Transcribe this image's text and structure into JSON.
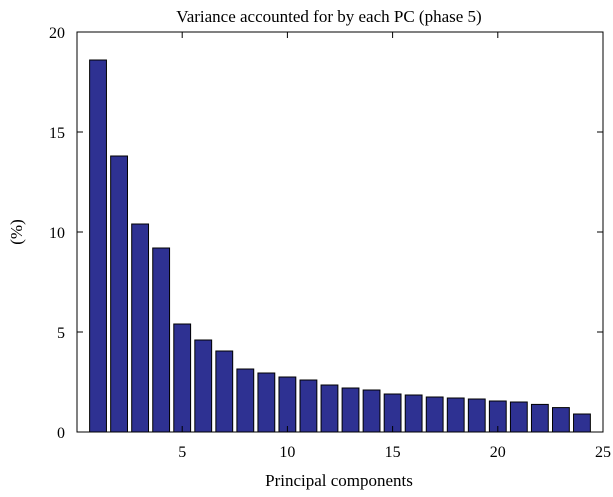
{
  "chart_data": {
    "type": "bar",
    "title": "Variance accounted for by each PC (phase 5)",
    "xlabel": "Principal components",
    "ylabel": "(%)",
    "x": [
      1,
      2,
      3,
      4,
      5,
      6,
      7,
      8,
      9,
      10,
      11,
      12,
      13,
      14,
      15,
      16,
      17,
      18,
      19,
      20,
      21,
      22,
      23,
      24
    ],
    "values": [
      18.6,
      13.8,
      10.4,
      9.2,
      5.4,
      4.6,
      4.05,
      3.15,
      2.95,
      2.75,
      2.6,
      2.35,
      2.2,
      2.1,
      1.9,
      1.85,
      1.75,
      1.7,
      1.65,
      1.55,
      1.5,
      1.38,
      1.22,
      0.9
    ],
    "xlim": [
      0,
      25
    ],
    "ylim": [
      0,
      20
    ],
    "xticks": [
      5,
      10,
      15,
      20,
      25
    ],
    "yticks": [
      0,
      5,
      10,
      15,
      20
    ],
    "xtick_labels": [
      "5",
      "10",
      "15",
      "20",
      "25"
    ],
    "ytick_labels": [
      "0",
      "5",
      "10",
      "15",
      "20"
    ],
    "grid": false,
    "colors": {
      "bar_fill": "#2e3192",
      "bar_edge": "#000000",
      "axes": "#000000"
    }
  }
}
